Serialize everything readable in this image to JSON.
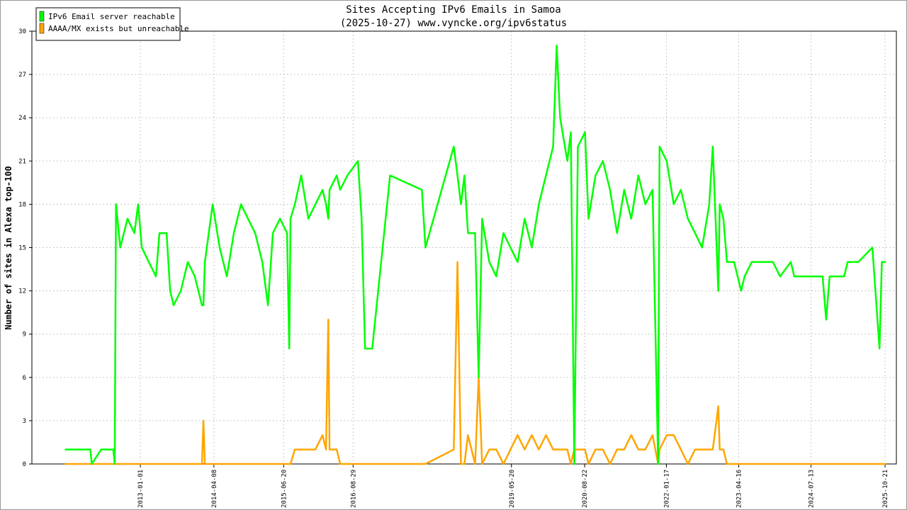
{
  "chart_data": {
    "type": "line",
    "title": "Sites Accepting IPv6 Emails in Samoa",
    "subtitle": "(2025-10-27) www.vyncke.org/ipv6status",
    "y_label": "Number of sites in Alexa top-100",
    "x": [
      "2011-09-15",
      "2012-02-22",
      "2012-03-02",
      "2012-04-30",
      "2012-07-15",
      "2012-07-24",
      "2012-08-01",
      "2012-08-28",
      "2012-10-12",
      "2012-11-25",
      "2012-12-18",
      "2013-01-10",
      "2013-02-23",
      "2013-04-09",
      "2013-05-01",
      "2013-06-15",
      "2013-07-07",
      "2013-07-29",
      "2013-09-12",
      "2013-10-26",
      "2013-12-09",
      "2014-01-23",
      "2014-02-01",
      "2014-02-10",
      "2014-03-31",
      "2014-05-14",
      "2014-06-28",
      "2014-08-11",
      "2014-09-25",
      "2014-11-08",
      "2014-12-23",
      "2015-02-06",
      "2015-03-13",
      "2015-04-13",
      "2015-05-28",
      "2015-07-11",
      "2015-07-25",
      "2015-08-02",
      "2015-08-29",
      "2015-10-08",
      "2015-11-22",
      "2016-01-05",
      "2016-02-19",
      "2016-03-12",
      "2016-03-26",
      "2016-04-03",
      "2016-05-18",
      "2016-06-09",
      "2016-07-24",
      "2016-09-28",
      "2016-10-21",
      "2016-11-12",
      "2016-12-27",
      "2017-04-18",
      "2017-11-04",
      "2017-11-26",
      "2018-05-23",
      "2018-06-15",
      "2018-07-07",
      "2018-07-29",
      "2018-08-20",
      "2018-10-04",
      "2018-10-26",
      "2018-11-17",
      "2019-01-01",
      "2019-02-14",
      "2019-03-31",
      "2019-05-14",
      "2019-06-28",
      "2019-08-11",
      "2019-09-25",
      "2019-11-08",
      "2019-12-23",
      "2020-02-06",
      "2020-02-28",
      "2020-03-21",
      "2020-05-05",
      "2020-05-27",
      "2020-06-18",
      "2020-07-10",
      "2020-08-24",
      "2020-09-15",
      "2020-10-29",
      "2020-12-14",
      "2021-01-28",
      "2021-03-13",
      "2021-04-27",
      "2021-06-10",
      "2021-07-25",
      "2021-09-07",
      "2021-10-22",
      "2021-11-26",
      "2021-12-05",
      "2022-01-19",
      "2022-03-04",
      "2022-04-18",
      "2022-06-01",
      "2022-07-16",
      "2022-08-29",
      "2022-10-13",
      "2022-11-04",
      "2022-12-09",
      "2022-12-18",
      "2023-01-10",
      "2023-02-01",
      "2023-03-18",
      "2023-05-01",
      "2023-05-23",
      "2023-07-07",
      "2023-11-17",
      "2024-01-01",
      "2024-03-08",
      "2024-03-30",
      "2024-09-24",
      "2024-10-16",
      "2024-11-07",
      "2025-02-06",
      "2025-02-28",
      "2025-05-06",
      "2025-08-02",
      "2025-09-16",
      "2025-10-01",
      "2025-10-27"
    ],
    "series": [
      {
        "name": "IPv6 Email server reachable",
        "color": "#00ff00",
        "values": [
          1,
          1,
          0,
          1,
          1,
          0,
          18,
          15,
          17,
          16,
          18,
          15,
          14,
          13,
          16,
          16,
          12,
          11,
          12,
          14,
          13,
          11,
          11,
          14,
          18,
          15,
          13,
          16,
          18,
          17,
          16,
          14,
          11,
          16,
          17,
          16,
          8,
          17,
          18,
          20,
          17,
          18,
          19,
          18,
          17,
          19,
          20,
          19,
          20,
          21,
          17,
          8,
          8,
          20,
          19,
          15,
          22,
          20,
          18,
          20,
          16,
          16,
          6,
          17,
          14,
          13,
          16,
          15,
          14,
          17,
          15,
          18,
          20,
          22,
          29,
          24,
          21,
          23,
          0,
          22,
          23,
          17,
          20,
          21,
          19,
          16,
          19,
          17,
          20,
          18,
          19,
          0,
          22,
          21,
          18,
          19,
          17,
          16,
          15,
          18,
          22,
          12,
          18,
          17,
          14,
          14,
          12,
          13,
          14,
          14,
          13,
          14,
          13,
          13,
          10,
          13,
          13,
          14,
          14,
          15,
          8,
          14,
          14
        ]
      },
      {
        "name": "AAAA/MX exists but unreachable",
        "color": "#ffa500",
        "values": [
          0,
          0,
          0,
          0,
          0,
          0,
          0,
          0,
          0,
          0,
          0,
          0,
          0,
          0,
          0,
          0,
          0,
          0,
          0,
          0,
          0,
          0,
          3,
          0,
          0,
          0,
          0,
          0,
          0,
          0,
          0,
          0,
          0,
          0,
          0,
          0,
          0,
          0,
          1,
          1,
          1,
          1,
          2,
          1,
          10,
          1,
          1,
          0,
          0,
          0,
          0,
          0,
          0,
          0,
          0,
          0,
          1,
          14,
          0,
          0,
          2,
          0,
          6,
          0,
          1,
          1,
          0,
          1,
          2,
          1,
          2,
          1,
          2,
          1,
          1,
          1,
          1,
          0,
          1,
          1,
          1,
          0,
          1,
          1,
          0,
          1,
          1,
          2,
          1,
          1,
          2,
          0,
          1,
          2,
          2,
          1,
          0,
          1,
          1,
          1,
          1,
          4,
          1,
          1,
          0,
          0,
          0,
          0,
          0,
          0,
          0,
          0,
          0,
          0,
          0,
          0,
          0,
          0,
          0,
          0,
          0,
          0,
          0
        ]
      }
    ],
    "xlim": [
      "2011-02-20",
      "2025-12-31"
    ],
    "xticks": [
      "2013-01-01",
      "2014-04-08",
      "2015-06-20",
      "2016-08-29",
      "2019-05-20",
      "2020-08-22",
      "2022-01-17",
      "2023-04-16",
      "2024-07-13",
      "2025-10-21"
    ],
    "ylim": [
      0,
      30
    ],
    "yticks": [
      0,
      3,
      6,
      9,
      12,
      15,
      18,
      21,
      24,
      27,
      30
    ],
    "grid": true,
    "legend": "top-left"
  }
}
